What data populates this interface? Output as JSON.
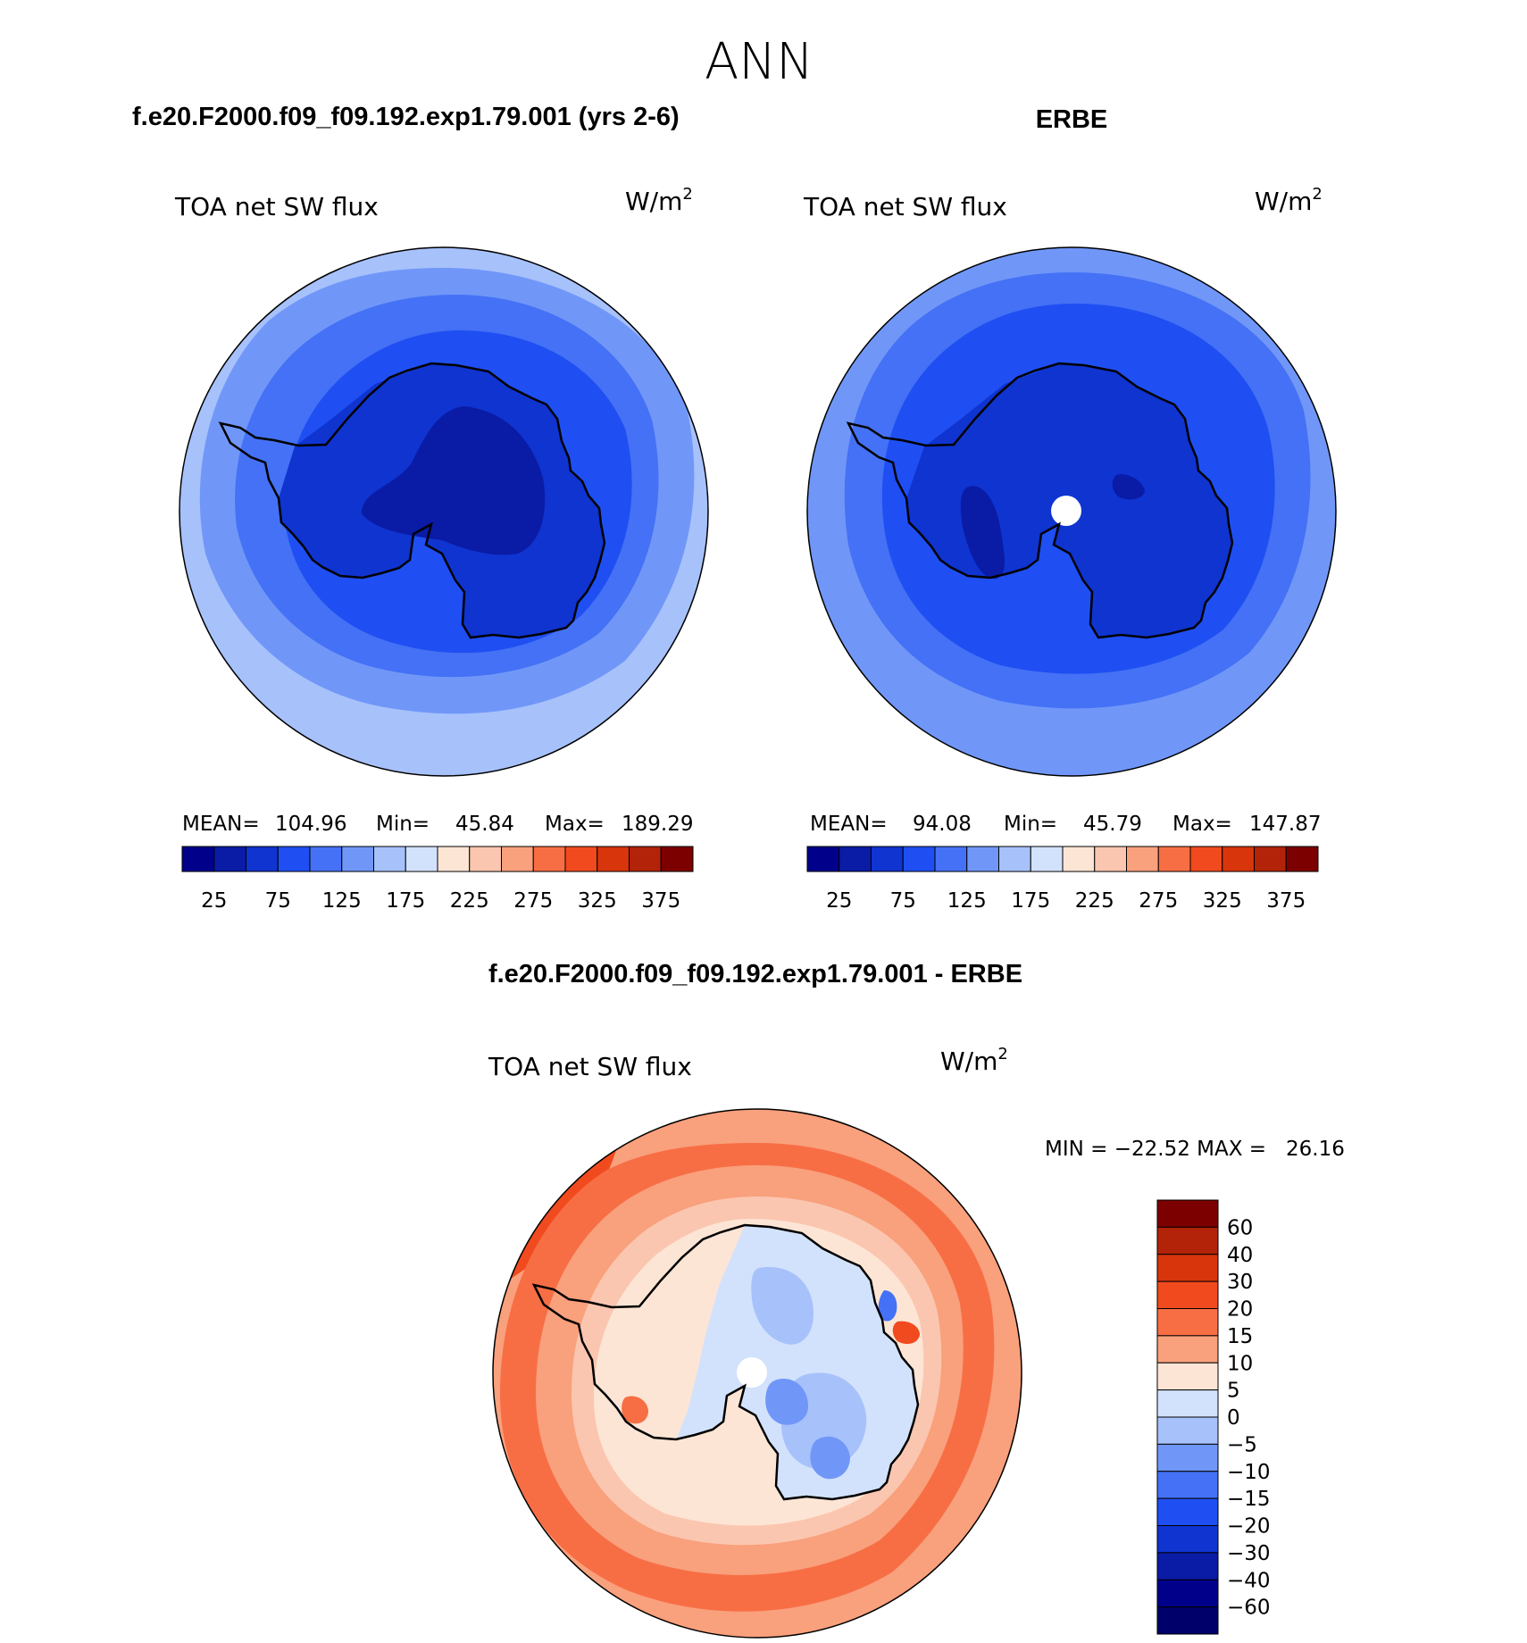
{
  "page": {
    "title": "ANN"
  },
  "panels": [
    {
      "heading": "f.e20.F2000.f09_f09.192.exp1.79.001 (yrs 2-6)",
      "variable": "TOA net SW flux",
      "units": "W/m",
      "units_superscript": "2",
      "stats": {
        "mean_label": "MEAN=",
        "mean_value": "104.96",
        "min_label": "Min=",
        "min_value": "45.84",
        "max_label": "Max=",
        "max_value": "189.29"
      }
    },
    {
      "heading": "ERBE",
      "variable": "TOA net SW flux",
      "units": "W/m",
      "units_superscript": "2",
      "stats": {
        "mean_label": "MEAN=",
        "mean_value": "94.08",
        "min_label": "Min=",
        "min_value": "45.79",
        "max_label": "Max=",
        "max_value": "147.87"
      }
    },
    {
      "heading": "f.e20.F2000.f09_f09.192.exp1.79.001 - ERBE",
      "variable": "TOA net SW flux",
      "units": "W/m",
      "units_superscript": "2",
      "stats": {
        "minmax_text": "MIN = −22.52 MAX =   26.16"
      }
    }
  ],
  "colorbars": {
    "absolute": {
      "colors": [
        "#00008b",
        "#0a1ba6",
        "#0f34d0",
        "#1f4ff2",
        "#4471f5",
        "#7097f8",
        "#a7c1fb",
        "#d2e2fc",
        "#fde5d5",
        "#fbc6b0",
        "#f9a07c",
        "#f76e45",
        "#f14a1e",
        "#d8350c",
        "#b2230a",
        "#7d0000"
      ],
      "labels": [
        "25",
        "75",
        "125",
        "175",
        "225",
        "275",
        "325",
        "375"
      ]
    },
    "difference": {
      "colors": [
        "#7d0000",
        "#b2230a",
        "#d8350c",
        "#f14a1e",
        "#f76e45",
        "#f9a07c",
        "#fde5d5",
        "#d2e2fc",
        "#a7c1fb",
        "#7097f8",
        "#4471f5",
        "#1f4ff2",
        "#0f34d0",
        "#0a1ba6",
        "#00008b"
      ],
      "labels": [
        "60",
        "40",
        "30",
        "20",
        "15",
        "10",
        "5",
        "0",
        "−5",
        "−10",
        "−15",
        "−20",
        "−30",
        "−40",
        "−60"
      ]
    }
  },
  "map_colors": {
    "p1": [
      "#a7c1fb",
      "#7097f8",
      "#4471f5",
      "#1f4ff2",
      "#0f34d0",
      "#0a1ba6"
    ],
    "p2": [
      "#7097f8",
      "#4471f5",
      "#1f4ff2",
      "#0f34d0",
      "#0a1ba6"
    ],
    "p3_ocean": [
      "#f76e45",
      "#f9a07c",
      "#fbc6b0",
      "#fde5d5"
    ],
    "p3_land": [
      "#d2e2fc",
      "#a7c1fb",
      "#7097f8",
      "#4471f5"
    ],
    "p3_hot": "#f14a1e"
  }
}
